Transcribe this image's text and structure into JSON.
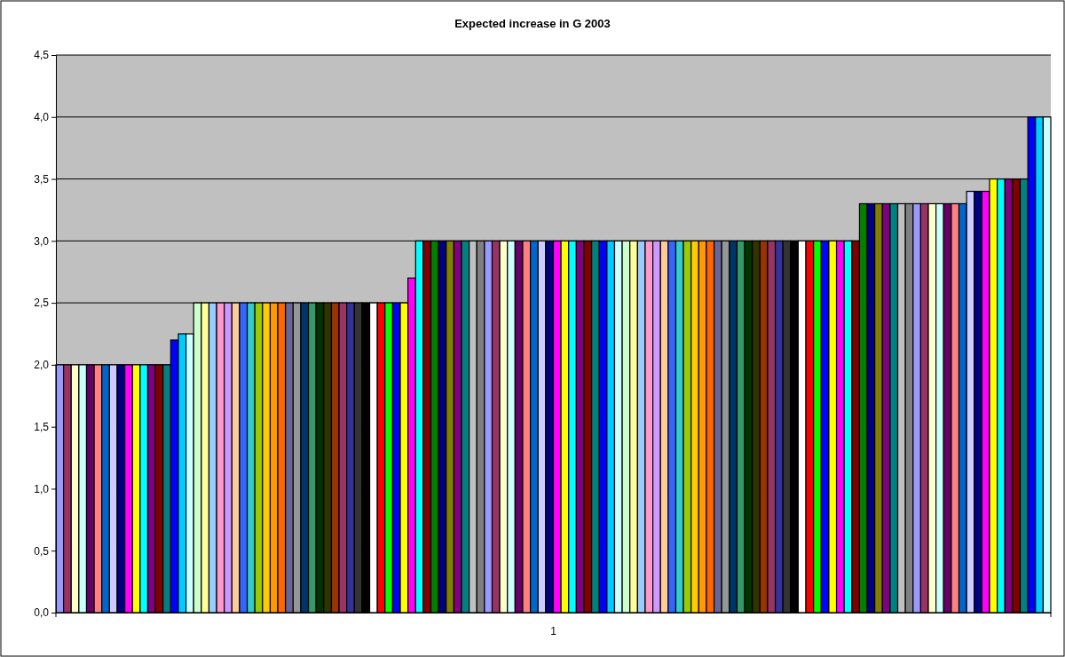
{
  "chart_data": {
    "type": "bar",
    "title": "Expected increase in G 2003",
    "categories": [
      "1"
    ],
    "ylim": [
      0,
      4.5
    ],
    "yticks": [
      {
        "value": 0,
        "label": "0,0"
      },
      {
        "value": 0.5,
        "label": "0,5"
      },
      {
        "value": 1,
        "label": "1,0"
      },
      {
        "value": 1.5,
        "label": "1,5"
      },
      {
        "value": 2,
        "label": "2,0"
      },
      {
        "value": 2.5,
        "label": "2,5"
      },
      {
        "value": 3,
        "label": "3,0"
      },
      {
        "value": 3.5,
        "label": "3,5"
      },
      {
        "value": 4,
        "label": "4,0"
      },
      {
        "value": 4.5,
        "label": "4,5"
      }
    ],
    "grid": "y",
    "series": [
      {
        "color": "#9999ff",
        "values": [
          2
        ]
      },
      {
        "color": "#993366",
        "values": [
          2
        ]
      },
      {
        "color": "#ffffcc",
        "values": [
          2
        ]
      },
      {
        "color": "#ccffff",
        "values": [
          2
        ]
      },
      {
        "color": "#660066",
        "values": [
          2
        ]
      },
      {
        "color": "#ff8080",
        "values": [
          2
        ]
      },
      {
        "color": "#0066cc",
        "values": [
          2
        ]
      },
      {
        "color": "#ccccff",
        "values": [
          2
        ]
      },
      {
        "color": "#000080",
        "values": [
          2
        ]
      },
      {
        "color": "#ff00ff",
        "values": [
          2
        ]
      },
      {
        "color": "#ffff00",
        "values": [
          2
        ]
      },
      {
        "color": "#00ffff",
        "values": [
          2
        ]
      },
      {
        "color": "#800080",
        "values": [
          2
        ]
      },
      {
        "color": "#800000",
        "values": [
          2
        ]
      },
      {
        "color": "#008080",
        "values": [
          2
        ]
      },
      {
        "color": "#0000ff",
        "values": [
          2.2
        ]
      },
      {
        "color": "#00ccff",
        "values": [
          2.25
        ]
      },
      {
        "color": "#ccffff",
        "values": [
          2.25
        ]
      },
      {
        "color": "#ccffcc",
        "values": [
          2.5
        ]
      },
      {
        "color": "#ffff99",
        "values": [
          2.5
        ]
      },
      {
        "color": "#99ccff",
        "values": [
          2.5
        ]
      },
      {
        "color": "#ff99cc",
        "values": [
          2.5
        ]
      },
      {
        "color": "#cc99ff",
        "values": [
          2.5
        ]
      },
      {
        "color": "#ffcc99",
        "values": [
          2.5
        ]
      },
      {
        "color": "#3366ff",
        "values": [
          2.5
        ]
      },
      {
        "color": "#33cccc",
        "values": [
          2.5
        ]
      },
      {
        "color": "#99cc00",
        "values": [
          2.5
        ]
      },
      {
        "color": "#ffcc00",
        "values": [
          2.5
        ]
      },
      {
        "color": "#ff9900",
        "values": [
          2.5
        ]
      },
      {
        "color": "#ff6600",
        "values": [
          2.5
        ]
      },
      {
        "color": "#666699",
        "values": [
          2.5
        ]
      },
      {
        "color": "#969696",
        "values": [
          2.5
        ]
      },
      {
        "color": "#003366",
        "values": [
          2.5
        ]
      },
      {
        "color": "#339966",
        "values": [
          2.5
        ]
      },
      {
        "color": "#003300",
        "values": [
          2.5
        ]
      },
      {
        "color": "#333300",
        "values": [
          2.5
        ]
      },
      {
        "color": "#993300",
        "values": [
          2.5
        ]
      },
      {
        "color": "#993366",
        "values": [
          2.5
        ]
      },
      {
        "color": "#333399",
        "values": [
          2.5
        ]
      },
      {
        "color": "#333333",
        "values": [
          2.5
        ]
      },
      {
        "color": "#000000",
        "values": [
          2.5
        ]
      },
      {
        "color": "#ffffff",
        "values": [
          2.5
        ]
      },
      {
        "color": "#ff0000",
        "values": [
          2.5
        ]
      },
      {
        "color": "#00ff00",
        "values": [
          2.5
        ]
      },
      {
        "color": "#0000ff",
        "values": [
          2.5
        ]
      },
      {
        "color": "#ffff00",
        "values": [
          2.5
        ]
      },
      {
        "color": "#ff00ff",
        "values": [
          2.7
        ]
      },
      {
        "color": "#00ffff",
        "values": [
          3
        ]
      },
      {
        "color": "#800000",
        "values": [
          3
        ]
      },
      {
        "color": "#008000",
        "values": [
          3
        ]
      },
      {
        "color": "#000080",
        "values": [
          3
        ]
      },
      {
        "color": "#808000",
        "values": [
          3
        ]
      },
      {
        "color": "#800080",
        "values": [
          3
        ]
      },
      {
        "color": "#008080",
        "values": [
          3
        ]
      },
      {
        "color": "#c0c0c0",
        "values": [
          3
        ]
      },
      {
        "color": "#808080",
        "values": [
          3
        ]
      },
      {
        "color": "#9999ff",
        "values": [
          3
        ]
      },
      {
        "color": "#993366",
        "values": [
          3
        ]
      },
      {
        "color": "#ffffcc",
        "values": [
          3
        ]
      },
      {
        "color": "#ccffff",
        "values": [
          3
        ]
      },
      {
        "color": "#660066",
        "values": [
          3
        ]
      },
      {
        "color": "#ff8080",
        "values": [
          3
        ]
      },
      {
        "color": "#0066cc",
        "values": [
          3
        ]
      },
      {
        "color": "#ccccff",
        "values": [
          3
        ]
      },
      {
        "color": "#000080",
        "values": [
          3
        ]
      },
      {
        "color": "#ff00ff",
        "values": [
          3
        ]
      },
      {
        "color": "#ffff00",
        "values": [
          3
        ]
      },
      {
        "color": "#00ffff",
        "values": [
          3
        ]
      },
      {
        "color": "#800080",
        "values": [
          3
        ]
      },
      {
        "color": "#800000",
        "values": [
          3
        ]
      },
      {
        "color": "#008080",
        "values": [
          3
        ]
      },
      {
        "color": "#0000ff",
        "values": [
          3
        ]
      },
      {
        "color": "#00ccff",
        "values": [
          3
        ]
      },
      {
        "color": "#ccffff",
        "values": [
          3
        ]
      },
      {
        "color": "#ccffcc",
        "values": [
          3
        ]
      },
      {
        "color": "#ffff99",
        "values": [
          3
        ]
      },
      {
        "color": "#99ccff",
        "values": [
          3
        ]
      },
      {
        "color": "#ff99cc",
        "values": [
          3
        ]
      },
      {
        "color": "#cc99ff",
        "values": [
          3
        ]
      },
      {
        "color": "#ffcc99",
        "values": [
          3
        ]
      },
      {
        "color": "#3366ff",
        "values": [
          3
        ]
      },
      {
        "color": "#33cccc",
        "values": [
          3
        ]
      },
      {
        "color": "#99cc00",
        "values": [
          3
        ]
      },
      {
        "color": "#ffcc00",
        "values": [
          3
        ]
      },
      {
        "color": "#ff9900",
        "values": [
          3
        ]
      },
      {
        "color": "#ff6600",
        "values": [
          3
        ]
      },
      {
        "color": "#666699",
        "values": [
          3
        ]
      },
      {
        "color": "#969696",
        "values": [
          3
        ]
      },
      {
        "color": "#003366",
        "values": [
          3
        ]
      },
      {
        "color": "#339966",
        "values": [
          3
        ]
      },
      {
        "color": "#003300",
        "values": [
          3
        ]
      },
      {
        "color": "#333300",
        "values": [
          3
        ]
      },
      {
        "color": "#993300",
        "values": [
          3
        ]
      },
      {
        "color": "#993366",
        "values": [
          3
        ]
      },
      {
        "color": "#333399",
        "values": [
          3
        ]
      },
      {
        "color": "#333333",
        "values": [
          3
        ]
      },
      {
        "color": "#000000",
        "values": [
          3
        ]
      },
      {
        "color": "#ffffff",
        "values": [
          3
        ]
      },
      {
        "color": "#ff0000",
        "values": [
          3
        ]
      },
      {
        "color": "#00ff00",
        "values": [
          3
        ]
      },
      {
        "color": "#0000ff",
        "values": [
          3
        ]
      },
      {
        "color": "#ffff00",
        "values": [
          3
        ]
      },
      {
        "color": "#ff00ff",
        "values": [
          3
        ]
      },
      {
        "color": "#00ffff",
        "values": [
          3
        ]
      },
      {
        "color": "#800000",
        "values": [
          3
        ]
      },
      {
        "color": "#008000",
        "values": [
          3.3
        ]
      },
      {
        "color": "#000080",
        "values": [
          3.3
        ]
      },
      {
        "color": "#808000",
        "values": [
          3.3
        ]
      },
      {
        "color": "#800080",
        "values": [
          3.3
        ]
      },
      {
        "color": "#008080",
        "values": [
          3.3
        ]
      },
      {
        "color": "#c0c0c0",
        "values": [
          3.3
        ]
      },
      {
        "color": "#808080",
        "values": [
          3.3
        ]
      },
      {
        "color": "#9999ff",
        "values": [
          3.3
        ]
      },
      {
        "color": "#993366",
        "values": [
          3.3
        ]
      },
      {
        "color": "#ffffcc",
        "values": [
          3.3
        ]
      },
      {
        "color": "#ccffff",
        "values": [
          3.3
        ]
      },
      {
        "color": "#660066",
        "values": [
          3.3
        ]
      },
      {
        "color": "#ff8080",
        "values": [
          3.3
        ]
      },
      {
        "color": "#0066cc",
        "values": [
          3.3
        ]
      },
      {
        "color": "#ccccff",
        "values": [
          3.4
        ]
      },
      {
        "color": "#000080",
        "values": [
          3.4
        ]
      },
      {
        "color": "#ff00ff",
        "values": [
          3.4
        ]
      },
      {
        "color": "#ffff00",
        "values": [
          3.5
        ]
      },
      {
        "color": "#00ffff",
        "values": [
          3.5
        ]
      },
      {
        "color": "#800080",
        "values": [
          3.5
        ]
      },
      {
        "color": "#800000",
        "values": [
          3.5
        ]
      },
      {
        "color": "#008080",
        "values": [
          3.5
        ]
      },
      {
        "color": "#0000ff",
        "values": [
          4
        ]
      },
      {
        "color": "#00ccff",
        "values": [
          4
        ]
      },
      {
        "color": "#ccffff",
        "values": [
          4
        ]
      }
    ]
  }
}
